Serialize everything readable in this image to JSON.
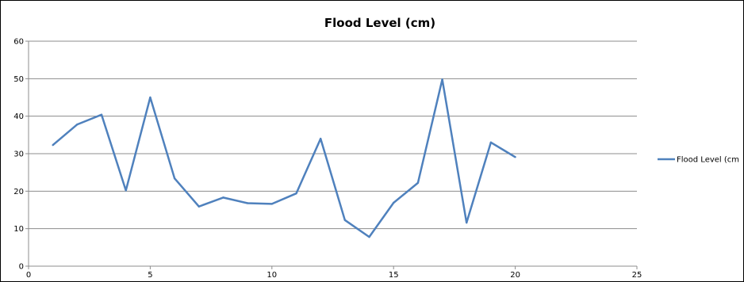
{
  "chart_data": {
    "type": "scatter",
    "title": "Flood Level (cm)",
    "xlabel": "",
    "ylabel": "",
    "xlim": [
      0,
      25
    ],
    "ylim": [
      0,
      60
    ],
    "x_ticks": [
      0,
      5,
      10,
      15,
      20,
      25
    ],
    "y_ticks": [
      0,
      10,
      20,
      30,
      40,
      50,
      60
    ],
    "grid": "horizontal",
    "legend": "right",
    "series": [
      {
        "name": "Flood Level (cm",
        "color": "#4f81bd",
        "x": [
          1,
          2,
          3,
          4,
          5,
          6,
          7,
          8,
          9,
          10,
          11,
          12,
          13,
          14,
          15,
          16,
          17,
          18,
          19,
          20
        ],
        "y": [
          32.3,
          37.8,
          40.4,
          20.2,
          45.0,
          23.4,
          15.9,
          18.3,
          16.8,
          16.6,
          19.4,
          34.0,
          12.3,
          7.8,
          16.9,
          22.2,
          49.8,
          11.6,
          33.0,
          29.1
        ]
      }
    ]
  }
}
